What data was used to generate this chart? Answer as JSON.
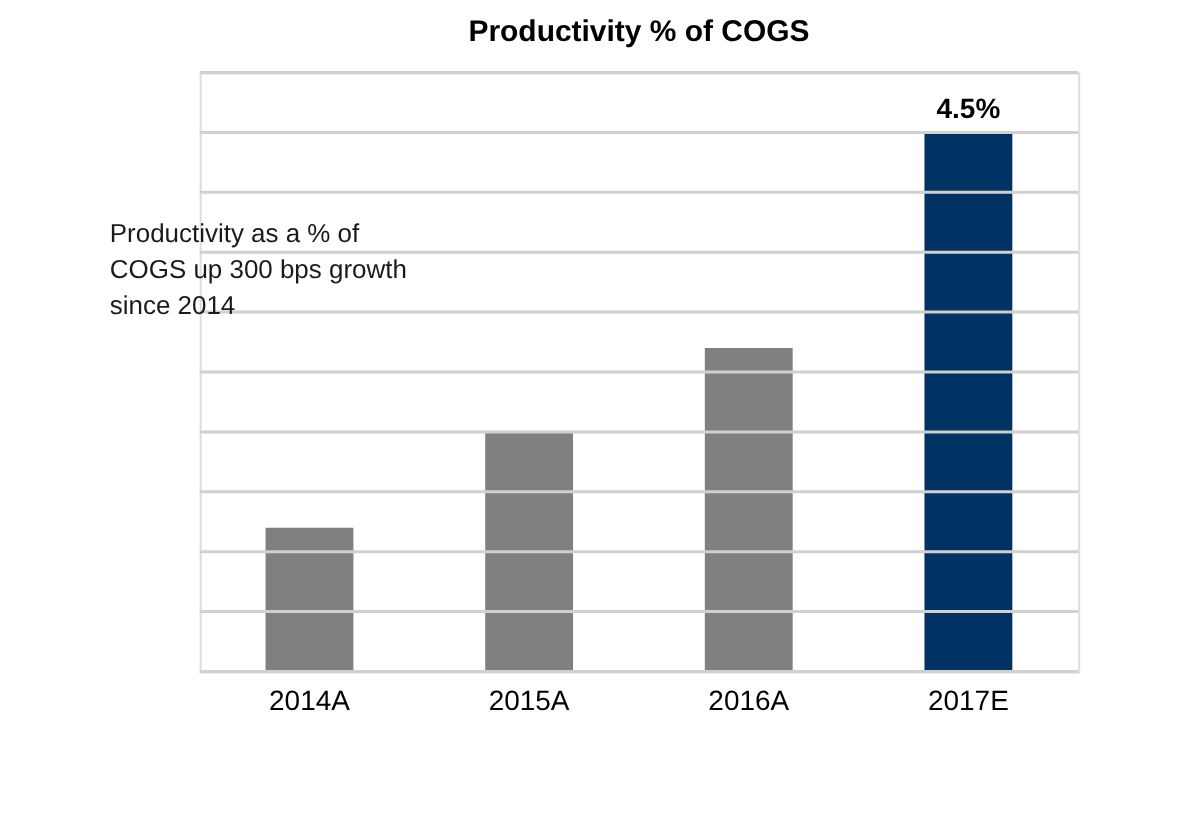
{
  "chart_data": {
    "type": "bar",
    "title": "Productivity % of COGS",
    "categories": [
      "2014A",
      "2015A",
      "2016A",
      "2017E"
    ],
    "values": [
      1.2,
      2.0,
      2.7,
      4.5
    ],
    "colors": [
      "#808080",
      "#808080",
      "#808080",
      "#003263"
    ],
    "value_labels": [
      null,
      null,
      null,
      "4.5%"
    ],
    "ylim": [
      0,
      5
    ],
    "yticks": [
      {
        "value": 0,
        "label": null
      },
      {
        "value": 0.5,
        "label": null
      },
      {
        "value": 1,
        "label": null
      },
      {
        "value": 1.5,
        "label": null
      },
      {
        "value": 2,
        "label": null
      },
      {
        "value": 2.5,
        "label": null
      },
      {
        "value": 3,
        "label": null
      },
      {
        "value": 3.5,
        "label": null
      },
      {
        "value": 4,
        "label": null
      },
      {
        "value": 4.5,
        "label": null
      },
      {
        "value": 5,
        "label": null
      }
    ],
    "tick_labels": "x",
    "grid": "y",
    "annotations": [
      "Productivity as a % of\nCOGS up 300 bps growth\nsince 2014"
    ]
  }
}
